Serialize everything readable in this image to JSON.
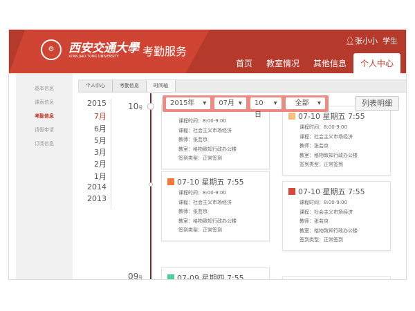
{
  "header": {
    "university_cn": "西安交通大學",
    "university_en": "XI'AN JIAO TONG UNIVERSITY",
    "app_title": "考勤服务",
    "user": "张小小",
    "role": "学生",
    "nav": [
      "首页",
      "教室情况",
      "其他信息",
      "个人中心"
    ]
  },
  "sidebar": [
    "基本信息",
    "课表信息",
    "考勤信息",
    "请假申请",
    "订阅信息"
  ],
  "breadcrumb": [
    "个人中心",
    "考勤信息",
    "时间轴"
  ],
  "years": [
    "2015",
    "7月",
    "6月",
    "5月",
    "3月",
    "2月",
    "1月",
    "2014",
    "2013"
  ],
  "days": [
    {
      "num": "10",
      "unit": "号"
    },
    {
      "num": "09",
      "unit": "号"
    }
  ],
  "filter": {
    "year": "2015年",
    "month": "07月",
    "day": "10日",
    "type": "全部"
  },
  "list_button": "列表明细",
  "labels": {
    "time": "课程时间：",
    "course": "课程：",
    "teacher": "教师：",
    "room": "教室：",
    "type": "签到类型："
  },
  "cards": [
    {
      "title": "07-10 星期五 7:55",
      "time": "8:00-9:00",
      "course": "社会主义市场经济",
      "teacher": "张芸京",
      "room": "格物致知行政办公楼",
      "type": "正常签到",
      "color": "#f5c07a"
    },
    {
      "title": "07-10 星期五 7:55",
      "time": "8:00-9:00",
      "course": "社会主义市场经济",
      "teacher": "张芸京",
      "room": "格物致知行政办公楼",
      "type": "正常签到",
      "color": "#f5c07a"
    },
    {
      "title": "07-10 星期五 7:55",
      "time": "8:00-9:00",
      "course": "社会主义市场经济",
      "teacher": "张芸京",
      "room": "格物致知行政办公楼",
      "type": "正常签到",
      "color": "#ef7a3a"
    },
    {
      "title": "07-10 星期五 7:55",
      "time": "8:00-9:00",
      "course": "社会主义市场经济",
      "teacher": "张芸京",
      "room": "格物致知行政办公楼",
      "type": "正常签到",
      "color": "#d9473b"
    },
    {
      "title": "07-09 星期四 7:55",
      "color": "#4fcf98"
    }
  ]
}
